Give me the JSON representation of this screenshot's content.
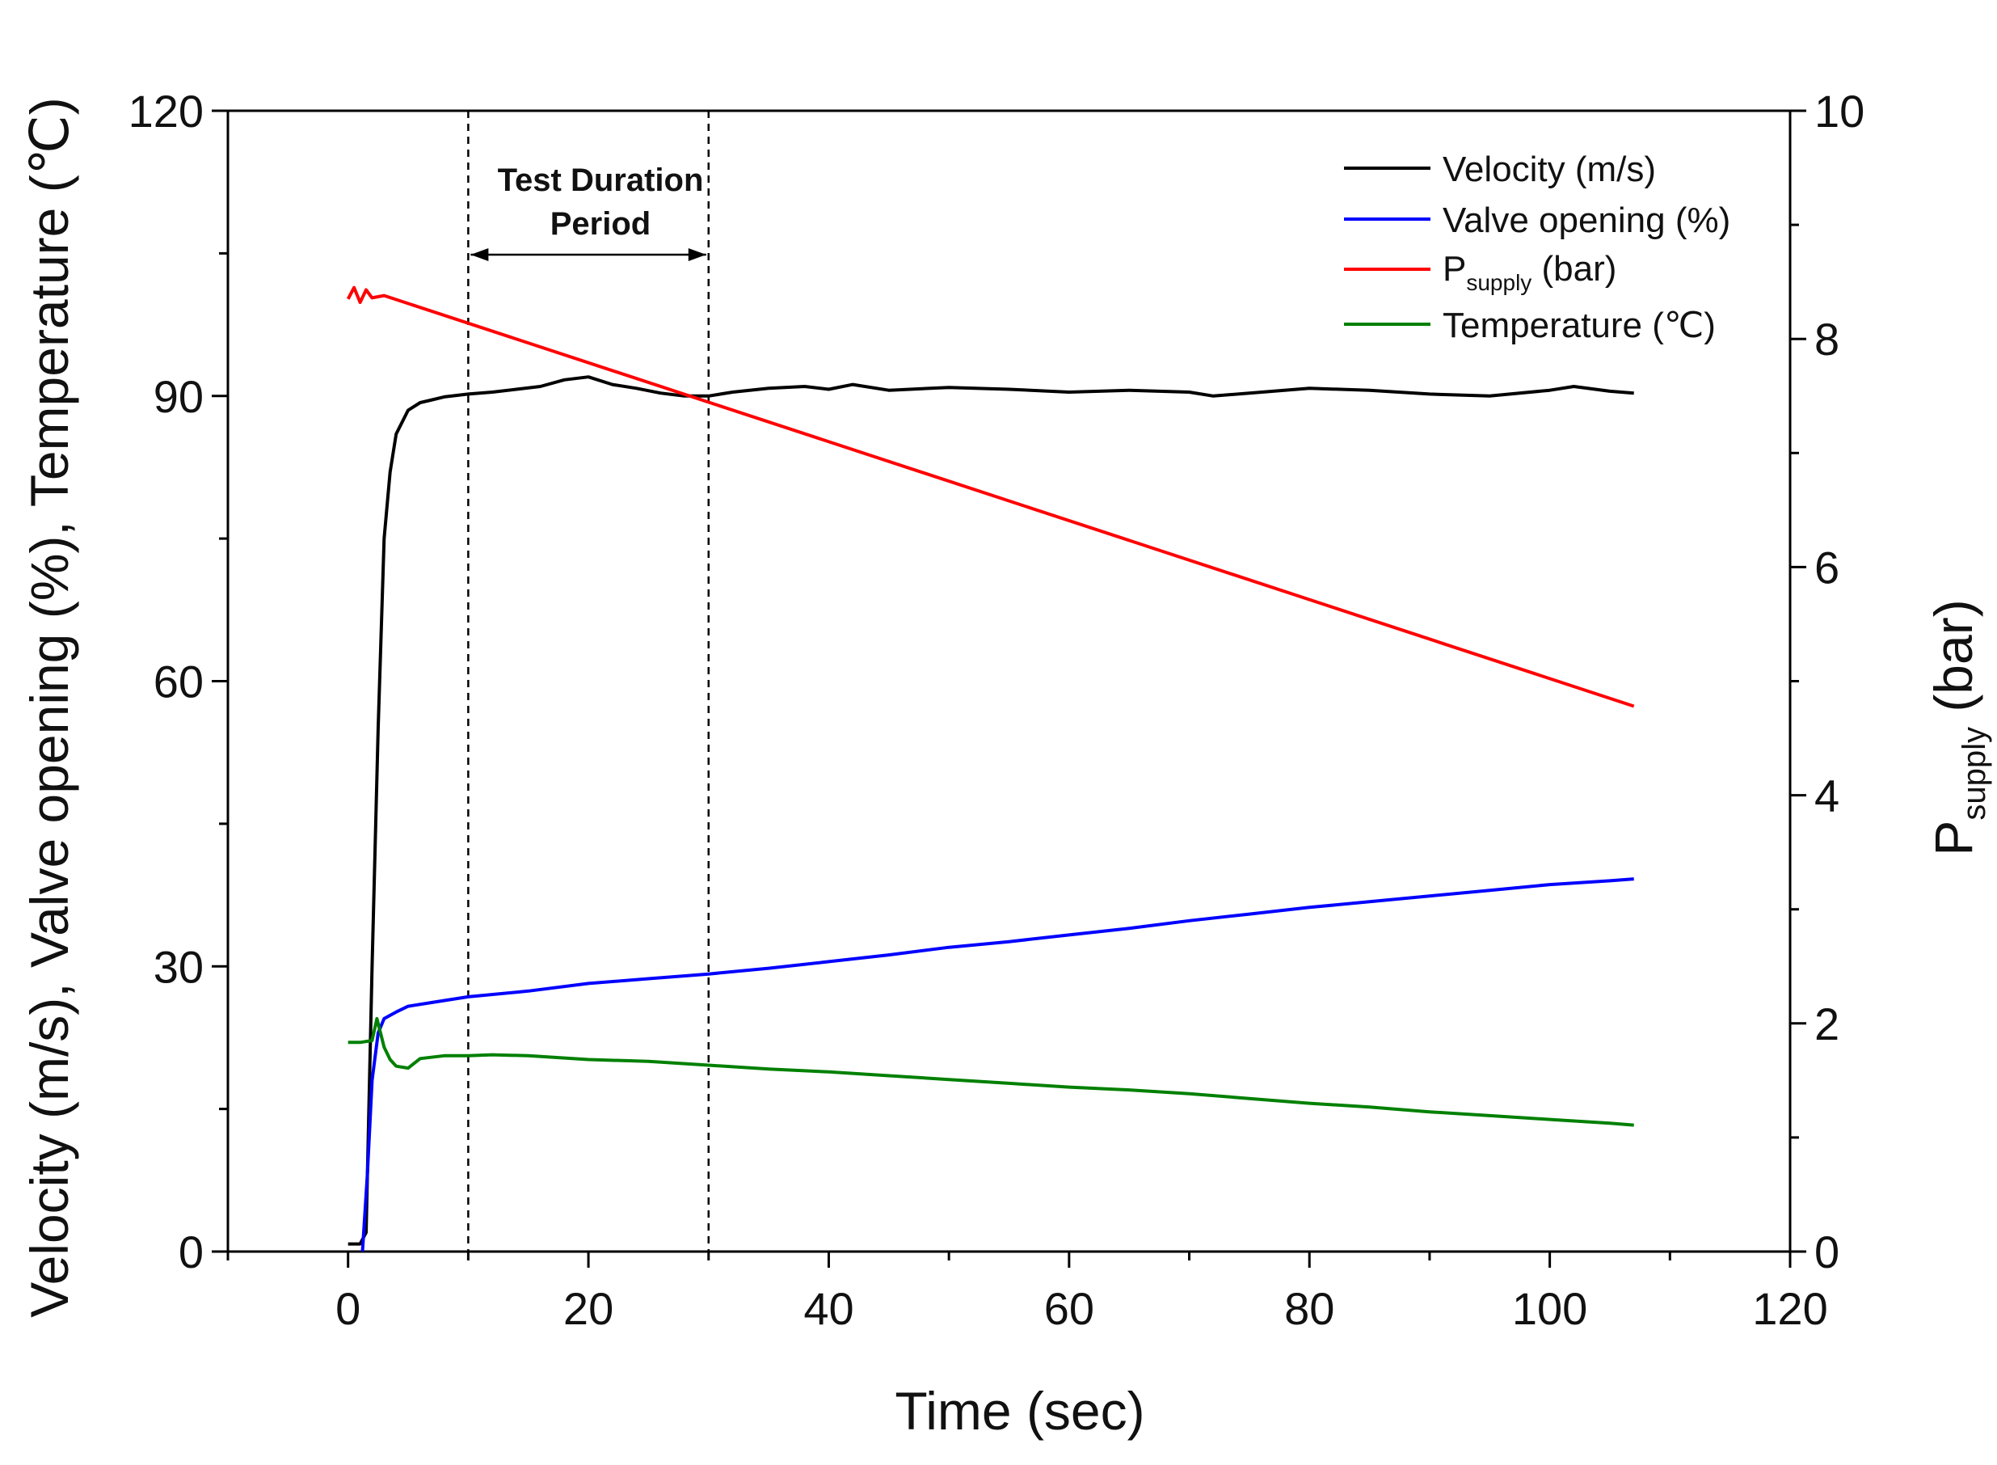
{
  "chart_data": {
    "type": "line",
    "title": "",
    "xlabel": "Time (sec)",
    "ylabel_left": "Velocity (m/s), Valve opening (%), Temperature (℃)",
    "ylabel_right": {
      "main": "P",
      "sub": "supply",
      "suffix": " (bar)"
    },
    "xlim": [
      -10,
      120
    ],
    "ylim_left": [
      0,
      120
    ],
    "ylim_right": [
      0,
      10
    ],
    "x_ticks": [
      0,
      20,
      40,
      60,
      80,
      100,
      120
    ],
    "y_left_ticks": [
      0,
      30,
      60,
      90,
      120
    ],
    "y_right_ticks": [
      0,
      2,
      4,
      6,
      8,
      10
    ],
    "grid": false,
    "legend_position": "top-right",
    "annotation": {
      "line1": "Test Duration",
      "line2": "Period",
      "x_start": 10,
      "x_end": 30
    },
    "series": [
      {
        "name": "Velocity (m/s)",
        "color": "#000000",
        "axis": "left",
        "x": [
          0,
          1,
          1.5,
          2,
          2.5,
          3,
          3.5,
          4,
          5,
          6,
          7,
          8,
          10,
          12,
          14,
          16,
          18,
          20,
          22,
          24,
          26,
          28,
          30,
          32,
          35,
          38,
          40,
          42,
          45,
          50,
          55,
          60,
          65,
          70,
          72,
          75,
          80,
          85,
          90,
          95,
          100,
          102,
          105,
          107
        ],
        "y": [
          0.8,
          0.8,
          2,
          30,
          55,
          75,
          82,
          86,
          88.5,
          89.3,
          89.6,
          89.9,
          90.2,
          90.4,
          90.7,
          91,
          91.7,
          92,
          91.2,
          90.8,
          90.3,
          90,
          90,
          90.4,
          90.8,
          91,
          90.7,
          91.2,
          90.6,
          90.9,
          90.7,
          90.4,
          90.6,
          90.4,
          90,
          90.3,
          90.8,
          90.6,
          90.2,
          90,
          90.6,
          91,
          90.5,
          90.3
        ]
      },
      {
        "name": "Valve opening (%)",
        "color": "#0000ff",
        "axis": "left",
        "x": [
          1.2,
          1.6,
          2,
          2.5,
          3,
          4,
          5,
          7,
          10,
          15,
          20,
          25,
          30,
          35,
          40,
          45,
          50,
          55,
          60,
          65,
          70,
          75,
          80,
          85,
          90,
          95,
          100,
          105,
          107
        ],
        "y": [
          0,
          8,
          18,
          23,
          24.5,
          25.2,
          25.8,
          26.2,
          26.8,
          27.4,
          28.2,
          28.7,
          29.2,
          29.8,
          30.5,
          31.2,
          32,
          32.6,
          33.3,
          34,
          34.8,
          35.5,
          36.2,
          36.8,
          37.4,
          38,
          38.6,
          39,
          39.2
        ]
      },
      {
        "name": "P_supply (bar)",
        "color": "#ff0000",
        "axis": "right",
        "x": [
          0,
          0.5,
          1,
          1.5,
          2,
          3,
          107
        ],
        "y": [
          8.35,
          8.45,
          8.32,
          8.43,
          8.36,
          8.38,
          4.78
        ]
      },
      {
        "name": "Temperature (℃)",
        "color": "#008000",
        "axis": "left",
        "x": [
          0,
          1,
          2,
          2.4,
          3,
          3.5,
          4,
          5,
          6,
          8,
          10,
          12,
          15,
          20,
          25,
          30,
          35,
          40,
          45,
          50,
          55,
          60,
          65,
          70,
          75,
          80,
          85,
          90,
          95,
          100,
          105,
          107
        ],
        "y": [
          22,
          22,
          22.2,
          24.5,
          21.5,
          20.2,
          19.5,
          19.3,
          20.3,
          20.6,
          20.6,
          20.7,
          20.6,
          20.2,
          20,
          19.6,
          19.2,
          18.9,
          18.5,
          18.1,
          17.7,
          17.3,
          17,
          16.6,
          16.1,
          15.6,
          15.2,
          14.7,
          14.3,
          13.9,
          13.5,
          13.3
        ]
      }
    ]
  },
  "legend": [
    {
      "label": "Velocity (m/s)",
      "color": "#000000"
    },
    {
      "label": "Valve opening (%)",
      "color": "#0000ff"
    },
    {
      "main": "P",
      "sub": "supply",
      "suffix": " (bar)",
      "color": "#ff0000"
    },
    {
      "label": "Temperature (℃)",
      "color": "#008000"
    }
  ]
}
